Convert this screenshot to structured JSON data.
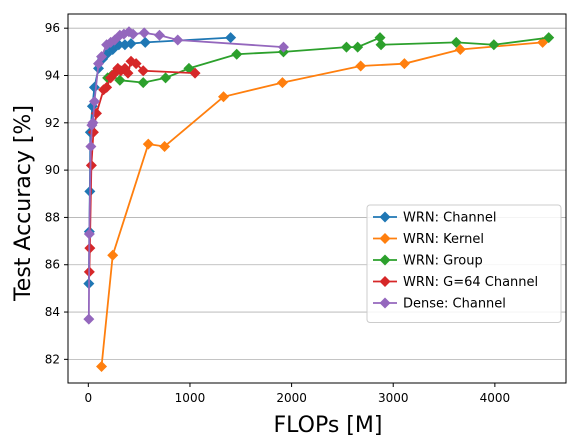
{
  "chart_data": {
    "type": "line",
    "title": "",
    "xlabel": "FLOPs [M]",
    "ylabel": "Test Accuracy [%]",
    "xlim": [
      -200,
      4700
    ],
    "ylim": [
      81,
      96.6
    ],
    "xticks": [
      0,
      1000,
      2000,
      3000,
      4000
    ],
    "yticks": [
      82,
      84,
      86,
      88,
      90,
      92,
      94,
      96
    ],
    "grid": "horizontal",
    "legend_position": "lower-right",
    "series": [
      {
        "name": "WRN: Channel",
        "color": "#1f77b4",
        "marker": "diamond",
        "points": [
          [
            5,
            85.2
          ],
          [
            10,
            87.4
          ],
          [
            15,
            89.1
          ],
          [
            20,
            91.6
          ],
          [
            40,
            92.7
          ],
          [
            60,
            93.5
          ],
          [
            100,
            94.3
          ],
          [
            140,
            94.7
          ],
          [
            180,
            94.9
          ],
          [
            240,
            95.1
          ],
          [
            300,
            95.3
          ],
          [
            360,
            95.3
          ],
          [
            420,
            95.35
          ],
          [
            560,
            95.4
          ],
          [
            1400,
            95.6
          ]
        ]
      },
      {
        "name": "WRN: Kernel",
        "color": "#ff7f0e",
        "marker": "diamond",
        "points": [
          [
            130,
            81.7
          ],
          [
            240,
            86.4
          ],
          [
            590,
            91.1
          ],
          [
            750,
            91.0
          ],
          [
            1330,
            93.1
          ],
          [
            1910,
            93.7
          ],
          [
            2680,
            94.4
          ],
          [
            3110,
            94.5
          ],
          [
            3660,
            95.1
          ],
          [
            4470,
            95.4
          ]
        ]
      },
      {
        "name": "WRN: Group",
        "color": "#2ca02c",
        "marker": "diamond",
        "points": [
          [
            190,
            93.9
          ],
          [
            230,
            94.0
          ],
          [
            310,
            93.8
          ],
          [
            540,
            93.7
          ],
          [
            760,
            93.9
          ],
          [
            990,
            94.3
          ],
          [
            1460,
            94.9
          ],
          [
            1920,
            95.0
          ],
          [
            2540,
            95.2
          ],
          [
            2650,
            95.2
          ],
          [
            2870,
            95.6
          ],
          [
            2880,
            95.3
          ],
          [
            3620,
            95.4
          ],
          [
            3990,
            95.3
          ],
          [
            4530,
            95.6
          ]
        ]
      },
      {
        "name": "WRN: G=64 Channel",
        "color": "#d62728",
        "marker": "diamond",
        "points": [
          [
            10,
            85.7
          ],
          [
            15,
            86.7
          ],
          [
            30,
            90.2
          ],
          [
            50,
            91.6
          ],
          [
            80,
            92.4
          ],
          [
            150,
            93.4
          ],
          [
            180,
            93.5
          ],
          [
            220,
            93.9
          ],
          [
            260,
            94.1
          ],
          [
            290,
            94.3
          ],
          [
            320,
            94.2
          ],
          [
            360,
            94.3
          ],
          [
            390,
            94.1
          ],
          [
            420,
            94.6
          ],
          [
            470,
            94.5
          ],
          [
            540,
            94.2
          ],
          [
            1050,
            94.1
          ]
        ]
      },
      {
        "name": "Dense: Channel",
        "color": "#9467bd",
        "marker": "diamond",
        "points": [
          [
            5,
            83.7
          ],
          [
            10,
            87.3
          ],
          [
            25,
            91.0
          ],
          [
            35,
            91.9
          ],
          [
            45,
            92.0
          ],
          [
            60,
            92.9
          ],
          [
            100,
            94.5
          ],
          [
            130,
            94.8
          ],
          [
            180,
            95.3
          ],
          [
            220,
            95.4
          ],
          [
            260,
            95.5
          ],
          [
            310,
            95.7
          ],
          [
            350,
            95.75
          ],
          [
            400,
            95.85
          ],
          [
            440,
            95.75
          ],
          [
            550,
            95.8
          ],
          [
            700,
            95.7
          ],
          [
            880,
            95.5
          ],
          [
            1920,
            95.2
          ]
        ]
      }
    ]
  }
}
